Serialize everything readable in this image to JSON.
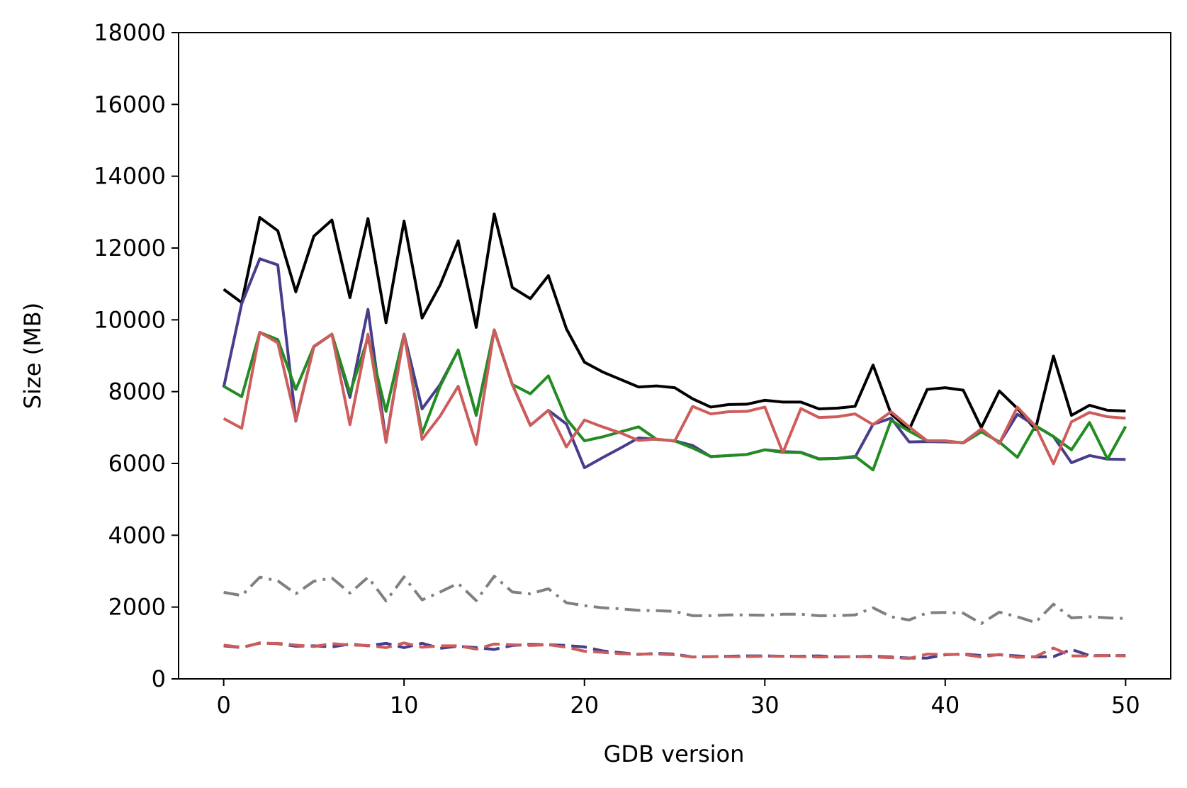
{
  "chart_data": {
    "type": "line",
    "xlabel": "GDB version",
    "ylabel": "Size (MB)",
    "xlim": [
      -2.5,
      52.5
    ],
    "ylim": [
      0,
      18000
    ],
    "xticks": [
      0,
      10,
      20,
      30,
      40,
      50
    ],
    "yticks": [
      0,
      2000,
      4000,
      6000,
      8000,
      10000,
      12000,
      14000,
      16000,
      18000
    ],
    "grid": false,
    "x": [
      0,
      1,
      2,
      3,
      4,
      5,
      6,
      7,
      8,
      9,
      10,
      11,
      12,
      13,
      14,
      15,
      16,
      17,
      18,
      19,
      20,
      21,
      22,
      23,
      24,
      25,
      26,
      27,
      28,
      29,
      30,
      31,
      32,
      33,
      34,
      35,
      36,
      37,
      38,
      39,
      40,
      41,
      42,
      43,
      44,
      45,
      46,
      47,
      48,
      49,
      50
    ],
    "series": [
      {
        "color": "#000000",
        "dash": "solid",
        "values": [
          10850,
          10480,
          12850,
          12480,
          10780,
          12330,
          12780,
          10620,
          12820,
          9920,
          12750,
          10050,
          10970,
          12200,
          9790,
          12950,
          10900,
          10590,
          11230,
          9750,
          8820,
          8550,
          8340,
          8130,
          8160,
          8110,
          7800,
          7570,
          7640,
          7650,
          7760,
          7710,
          7710,
          7520,
          7540,
          7590,
          8740,
          7380,
          6940,
          8060,
          8110,
          8040,
          7000,
          8020,
          7530,
          6950,
          8990,
          7340,
          7620,
          7480,
          7460
        ]
      },
      {
        "color": "#483d8b",
        "dash": "solid",
        "values": [
          8120,
          10450,
          11700,
          11530,
          7180,
          9250,
          9600,
          7840,
          10290,
          6620,
          9600,
          7520,
          8200,
          9150,
          7340,
          9720,
          8200,
          7060,
          7480,
          7100,
          5880,
          6160,
          6430,
          6710,
          6670,
          6630,
          6500,
          6190,
          6220,
          6250,
          6380,
          6330,
          6310,
          6130,
          6140,
          6170,
          7090,
          7260,
          6600,
          6610,
          6600,
          6580,
          6960,
          6560,
          7370,
          7050,
          6750,
          6020,
          6220,
          6120,
          6110
        ]
      },
      {
        "color": "#228b22",
        "dash": "solid",
        "values": [
          8150,
          7860,
          9650,
          9450,
          8060,
          9260,
          9600,
          7960,
          9500,
          7450,
          9600,
          6830,
          8150,
          9160,
          7350,
          9720,
          8200,
          7940,
          8440,
          7240,
          6630,
          6740,
          6880,
          7020,
          6670,
          6630,
          6430,
          6190,
          6220,
          6250,
          6380,
          6310,
          6300,
          6120,
          6140,
          6200,
          5820,
          7200,
          6900,
          6630,
          6630,
          6570,
          6880,
          6600,
          6170,
          7050,
          6750,
          6380,
          7140,
          6120,
          7030
        ]
      },
      {
        "color": "#cd5c5c",
        "dash": "solid",
        "values": [
          7250,
          6980,
          9650,
          9360,
          7200,
          9260,
          9600,
          7080,
          9600,
          6590,
          9600,
          6670,
          7320,
          8150,
          6530,
          9720,
          8200,
          7060,
          7480,
          6460,
          7210,
          7020,
          6850,
          6640,
          6680,
          6620,
          7590,
          7380,
          7440,
          7450,
          7570,
          6300,
          7530,
          7280,
          7300,
          7380,
          7080,
          7440,
          7020,
          6630,
          6630,
          6570,
          6960,
          6560,
          7570,
          7040,
          5990,
          7160,
          7420,
          7300,
          7260
        ]
      },
      {
        "color": "#808080",
        "dash": "dashdot",
        "values": [
          2410,
          2320,
          2830,
          2730,
          2370,
          2720,
          2810,
          2390,
          2830,
          2170,
          2840,
          2200,
          2420,
          2660,
          2180,
          2860,
          2420,
          2370,
          2510,
          2120,
          2040,
          1980,
          1950,
          1910,
          1900,
          1880,
          1760,
          1760,
          1780,
          1780,
          1770,
          1800,
          1800,
          1760,
          1760,
          1780,
          1980,
          1730,
          1640,
          1840,
          1850,
          1830,
          1540,
          1860,
          1730,
          1570,
          2080,
          1700,
          1730,
          1700,
          1680
        ]
      },
      {
        "color": "#483d8b",
        "dash": "dashed",
        "values": [
          920,
          870,
          1000,
          980,
          910,
          920,
          890,
          970,
          920,
          990,
          870,
          990,
          850,
          910,
          870,
          820,
          930,
          960,
          950,
          930,
          890,
          780,
          730,
          680,
          710,
          690,
          610,
          620,
          630,
          640,
          640,
          630,
          630,
          640,
          610,
          620,
          630,
          610,
          580,
          580,
          670,
          690,
          650,
          670,
          640,
          610,
          620,
          820,
          650,
          650,
          650
        ]
      },
      {
        "color": "#cd5c5c",
        "dash": "dashed",
        "values": [
          940,
          880,
          990,
          990,
          940,
          900,
          980,
          940,
          930,
          870,
          1000,
          880,
          920,
          920,
          830,
          970,
          950,
          930,
          950,
          880,
          770,
          740,
          700,
          690,
          690,
          670,
          610,
          620,
          620,
          620,
          630,
          630,
          620,
          610,
          620,
          620,
          610,
          590,
          570,
          690,
          680,
          680,
          610,
          680,
          600,
          620,
          860,
          640,
          640,
          650,
          640
        ]
      }
    ]
  }
}
